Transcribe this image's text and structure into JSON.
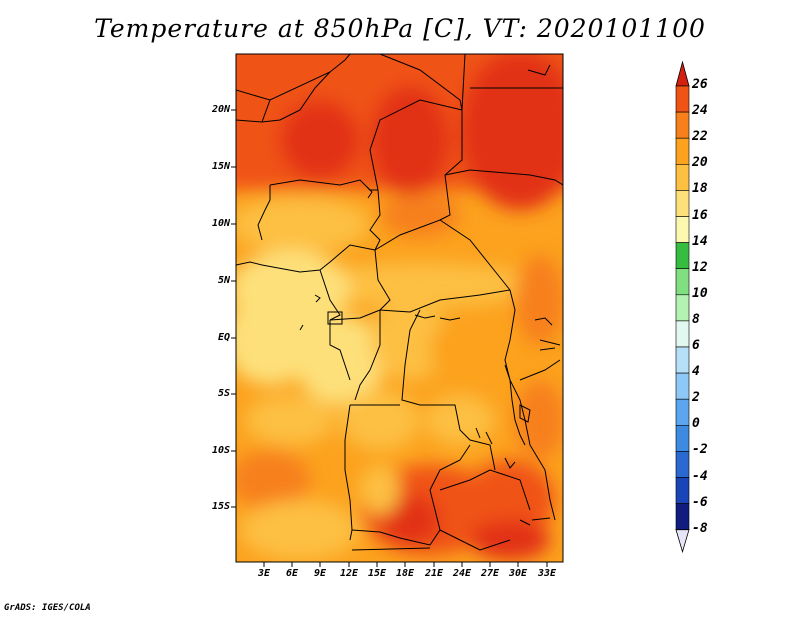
{
  "title": "Temperature at 850hPa [C], VT: 2020101100",
  "credit": "GrADS: IGES/COLA",
  "map": {
    "lat_labels": [
      "20N",
      "15N",
      "10N",
      "5N",
      "EQ",
      "5S",
      "10S",
      "15S"
    ],
    "lon_labels": [
      "3E",
      "6E",
      "9E",
      "12E",
      "15E",
      "18E",
      "21E",
      "24E",
      "27E",
      "30E",
      "33E"
    ]
  },
  "colorbar": {
    "labels": [
      "26",
      "24",
      "22",
      "20",
      "18",
      "16",
      "14",
      "12",
      "10",
      "8",
      "6",
      "4",
      "2",
      "0",
      "-2",
      "-4",
      "-6",
      "-8"
    ],
    "colors": [
      "#e23312",
      "#f05316",
      "#f7801c",
      "#fca21e",
      "#fdc042",
      "#fde07a",
      "#fdf8b0",
      "#36bd3f",
      "#80df80",
      "#b3f2b3",
      "#e0f8f0",
      "#b6dff8",
      "#8ec8f6",
      "#5ba6ee",
      "#3d8be0",
      "#2a69d0",
      "#1a45b8",
      "#101c80"
    ],
    "under_color": "#e6e6f8",
    "over_color": "#d42010"
  }
}
